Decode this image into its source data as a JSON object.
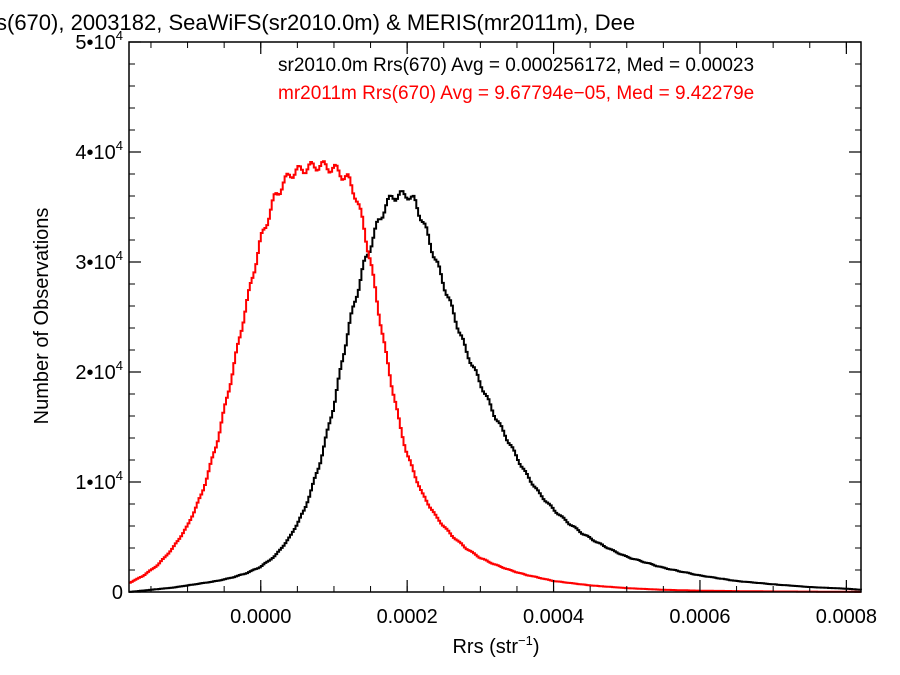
{
  "chart_data": {
    "type": "line",
    "title": "s(670), 2003182, SeaWiFS(sr2010.0m) & MERIS(mr2011m), Dee",
    "xlabel": "Rrs (str",
    "xlabel_sup": "−1",
    "xlabel_suffix": ")",
    "ylabel": "Number of Observations",
    "xlim": [
      -0.00018,
      0.00082
    ],
    "ylim": [
      0,
      50000
    ],
    "grid": false,
    "x_ticks": [
      {
        "value": 0.0,
        "label": "0.0000"
      },
      {
        "value": 0.0002,
        "label": "0.0002"
      },
      {
        "value": 0.0004,
        "label": "0.0004"
      },
      {
        "value": 0.0006,
        "label": "0.0006"
      },
      {
        "value": 0.0008,
        "label": "0.0008"
      }
    ],
    "y_ticks": [
      {
        "value": 0,
        "base": "0",
        "exp": ""
      },
      {
        "value": 10000,
        "base": "1•10",
        "exp": "4"
      },
      {
        "value": 20000,
        "base": "2•10",
        "exp": "4"
      },
      {
        "value": 30000,
        "base": "3•10",
        "exp": "4"
      },
      {
        "value": 40000,
        "base": "4•10",
        "exp": "4"
      },
      {
        "value": 50000,
        "base": "5•10",
        "exp": "4"
      }
    ],
    "annotations": [
      {
        "text": "sr2010.0m Rrs(670) Avg = 0.000256172, Med = 0.00023",
        "color": "#000000"
      },
      {
        "text": "mr2011m Rrs(670) Avg = 9.67794e−05, Med = 9.42279e",
        "color": "#ff0000"
      }
    ],
    "series": [
      {
        "color": "#000000",
        "x": [
          -0.00018,
          -0.00015,
          -0.00012,
          -0.0001,
          -8e-05,
          -6e-05,
          -4e-05,
          -2e-05,
          0.0,
          2e-05,
          4e-05,
          6e-05,
          8e-05,
          0.0001,
          0.00012,
          0.00014,
          0.00015,
          0.00016,
          0.00017,
          0.00018,
          0.00019,
          0.0002,
          0.00021,
          0.00022,
          0.00023,
          0.00024,
          0.00025,
          0.00026,
          0.00027,
          0.00028,
          0.0003,
          0.00032,
          0.00034,
          0.00036,
          0.00038,
          0.0004,
          0.00042,
          0.00044,
          0.00046,
          0.00048,
          0.0005,
          0.00055,
          0.0006,
          0.00065,
          0.0007,
          0.00075,
          0.0008,
          0.00082
        ],
        "y": [
          0,
          200,
          400,
          600,
          800,
          1000,
          1300,
          1700,
          2300,
          3300,
          5000,
          7500,
          11500,
          17000,
          24000,
          29500,
          31500,
          33500,
          35000,
          36000,
          36000,
          36200,
          35500,
          34000,
          32000,
          30000,
          28000,
          26000,
          24000,
          22000,
          19000,
          16000,
          13500,
          11000,
          9000,
          7500,
          6300,
          5300,
          4500,
          3800,
          3200,
          2200,
          1500,
          1000,
          700,
          450,
          300,
          200
        ]
      },
      {
        "color": "#ff0000",
        "x": [
          -0.00018,
          -0.00016,
          -0.00014,
          -0.00012,
          -0.0001,
          -8e-05,
          -6e-05,
          -4e-05,
          -2e-05,
          0.0,
          2e-05,
          4e-05,
          6e-05,
          8e-05,
          0.0001,
          0.00012,
          0.00013,
          0.00014,
          0.00015,
          0.00016,
          0.00017,
          0.00018,
          0.00019,
          0.0002,
          0.00022,
          0.00024,
          0.00026,
          0.00028,
          0.0003,
          0.00032,
          0.00034,
          0.00036,
          0.00038,
          0.0004,
          0.00045,
          0.0005,
          0.00055,
          0.0006,
          0.00065,
          0.0007,
          0.0008,
          0.00082
        ],
        "y": [
          800,
          1500,
          2500,
          4000,
          6000,
          9000,
          13500,
          19500,
          26000,
          32000,
          36000,
          38000,
          38500,
          38800,
          38500,
          37500,
          36000,
          33500,
          30000,
          26000,
          22000,
          18500,
          15200,
          12500,
          9000,
          6800,
          5200,
          4000,
          3100,
          2500,
          2000,
          1600,
          1300,
          1000,
          600,
          350,
          200,
          120,
          80,
          50,
          20,
          10
        ]
      }
    ]
  }
}
